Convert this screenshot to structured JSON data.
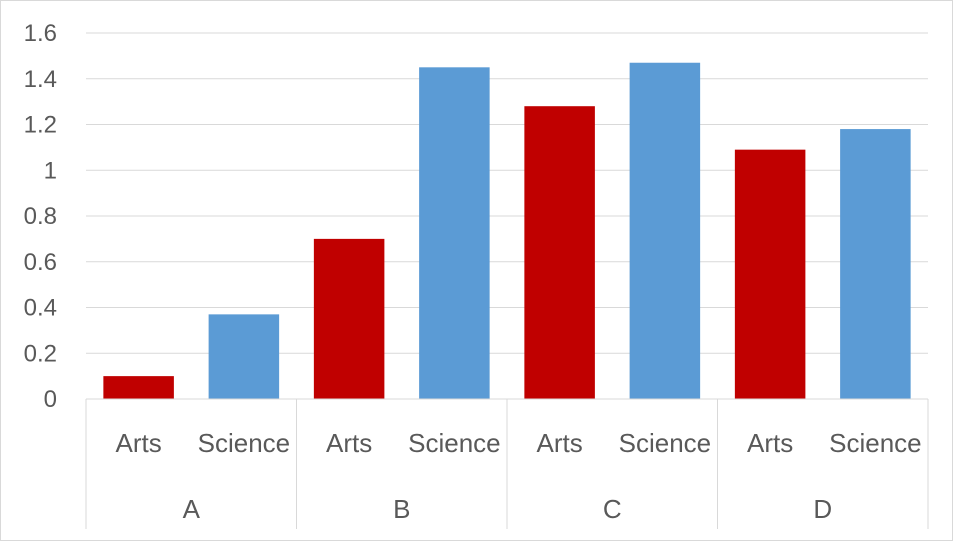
{
  "chart_data": {
    "type": "bar",
    "groups": [
      {
        "label": "A",
        "categories": [
          "Arts",
          "Science"
        ],
        "values": [
          0.1,
          0.37
        ]
      },
      {
        "label": "B",
        "categories": [
          "Arts",
          "Science"
        ],
        "values": [
          0.7,
          1.45
        ]
      },
      {
        "label": "C",
        "categories": [
          "Arts",
          "Science"
        ],
        "values": [
          1.28,
          1.47
        ]
      },
      {
        "label": "D",
        "categories": [
          "Arts",
          "Science"
        ],
        "values": [
          1.09,
          1.18
        ]
      }
    ],
    "colors": {
      "Arts": "#c00000",
      "Science": "#5b9bd5"
    },
    "ylim": [
      0,
      1.6
    ],
    "yticks": [
      "0",
      "0.2",
      "0.4",
      "0.6",
      "0.8",
      "1",
      "1.2",
      "1.4",
      "1.6"
    ],
    "grid": true,
    "title": "",
    "xlabel": "",
    "ylabel": ""
  }
}
